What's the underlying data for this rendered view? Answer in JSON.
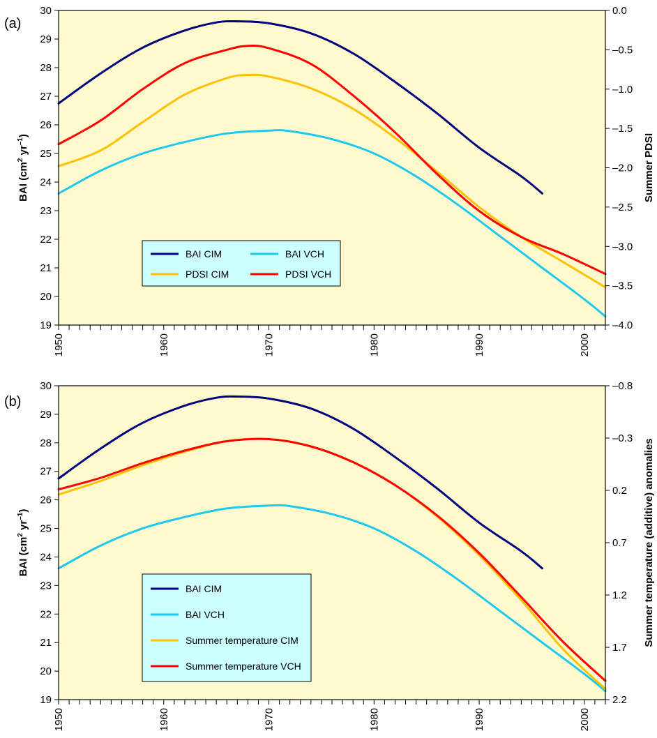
{
  "chart_data": [
    {
      "type": "line",
      "panel_label": "(a)",
      "ylabel": "BAI (cm² yr⁻¹)",
      "ylabel_parts": [
        "BAI (cm",
        "2",
        " yr",
        "–1",
        ")"
      ],
      "y2label": "Summer PDSI",
      "xlim": [
        1950,
        2002
      ],
      "ylim": [
        19,
        30
      ],
      "y2lim": [
        -4.0,
        0.0
      ],
      "x_ticks": [
        "1950",
        "1960",
        "1970",
        "1980",
        "1990",
        "2000"
      ],
      "y_ticks": [
        "19",
        "20",
        "21",
        "22",
        "23",
        "24",
        "25",
        "26",
        "27",
        "28",
        "29",
        "30"
      ],
      "y2_ticks": [
        "–4.0",
        "–3.5",
        "–3.0",
        "–2.5",
        "–2.0",
        "–1.5",
        "–1.0",
        "–0.5",
        "0.0"
      ],
      "grid": false,
      "background": "#FFFACD",
      "legend_placement": "lower-left",
      "legend_columns": 2,
      "series": [
        {
          "name": "BAI CIM",
          "axis": "left",
          "color": "#000080",
          "x": [
            1950,
            1954,
            1958,
            1962,
            1965,
            1967,
            1970,
            1974,
            1978,
            1982,
            1986,
            1990,
            1994,
            1996
          ],
          "y": [
            26.75,
            27.8,
            28.7,
            29.3,
            29.58,
            29.62,
            29.55,
            29.2,
            28.5,
            27.5,
            26.4,
            25.2,
            24.2,
            23.6
          ]
        },
        {
          "name": "BAI VCH",
          "axis": "left",
          "color": "#1EC8F0",
          "x": [
            1950,
            1954,
            1958,
            1962,
            1966,
            1970,
            1972,
            1976,
            1980,
            1984,
            1988,
            1992,
            1996,
            2000,
            2002
          ],
          "y": [
            23.6,
            24.4,
            25.0,
            25.4,
            25.7,
            25.8,
            25.78,
            25.5,
            25.0,
            24.2,
            23.2,
            22.1,
            21.0,
            19.9,
            19.3
          ]
        },
        {
          "name": "PDSI CIM",
          "axis": "right",
          "color": "#FFC000",
          "x": [
            1950,
            1954,
            1958,
            1962,
            1966,
            1968,
            1970,
            1974,
            1978,
            1982,
            1986,
            1990,
            1994,
            1998,
            2002
          ],
          "y": [
            -1.98,
            -1.78,
            -1.42,
            -1.07,
            -0.86,
            -0.82,
            -0.84,
            -0.99,
            -1.25,
            -1.62,
            -2.05,
            -2.5,
            -2.88,
            -3.2,
            -3.52
          ]
        },
        {
          "name": "PDSI VCH",
          "axis": "right",
          "color": "#FF0000",
          "x": [
            1950,
            1954,
            1958,
            1962,
            1966,
            1968,
            1970,
            1974,
            1978,
            1982,
            1986,
            1990,
            1994,
            1998,
            2002
          ],
          "y": [
            -1.7,
            -1.4,
            -1.0,
            -0.67,
            -0.5,
            -0.45,
            -0.48,
            -0.68,
            -1.08,
            -1.55,
            -2.08,
            -2.55,
            -2.88,
            -3.1,
            -3.35
          ]
        }
      ]
    },
    {
      "type": "line",
      "panel_label": "(b)",
      "ylabel": "BAI (cm² yr⁻¹)",
      "ylabel_parts": [
        "BAI (cm",
        "2",
        " yr",
        "–1",
        ")"
      ],
      "y2label": "Summer temperature (additive) anomalies",
      "xlim": [
        1950,
        2002
      ],
      "ylim": [
        19,
        30
      ],
      "y2lim": [
        2.2,
        -0.8
      ],
      "y2_inverted": true,
      "x_ticks": [
        "1950",
        "1960",
        "1970",
        "1980",
        "1990",
        "2000"
      ],
      "y_ticks": [
        "19",
        "20",
        "21",
        "22",
        "23",
        "24",
        "25",
        "26",
        "27",
        "28",
        "29",
        "30"
      ],
      "y2_ticks": [
        "2.2",
        "1.7",
        "1.2",
        "0.7",
        "0.2",
        "–0.3",
        "–0.8"
      ],
      "y2_tick_values": [
        2.2,
        1.7,
        1.2,
        0.7,
        0.2,
        -0.3,
        -0.8
      ],
      "grid": false,
      "background": "#FFFACD",
      "legend_placement": "lower-left",
      "legend_columns": 1,
      "series": [
        {
          "name": "BAI CIM",
          "axis": "left",
          "color": "#000080",
          "x": [
            1950,
            1954,
            1958,
            1962,
            1965,
            1967,
            1970,
            1974,
            1978,
            1982,
            1986,
            1990,
            1994,
            1996
          ],
          "y": [
            26.75,
            27.8,
            28.7,
            29.3,
            29.58,
            29.62,
            29.55,
            29.2,
            28.5,
            27.5,
            26.4,
            25.2,
            24.2,
            23.6
          ]
        },
        {
          "name": "BAI VCH",
          "axis": "left",
          "color": "#1EC8F0",
          "x": [
            1950,
            1954,
            1958,
            1962,
            1966,
            1970,
            1972,
            1976,
            1980,
            1984,
            1988,
            1992,
            1996,
            2000,
            2002
          ],
          "y": [
            23.6,
            24.4,
            25.0,
            25.4,
            25.7,
            25.8,
            25.78,
            25.5,
            25.0,
            24.2,
            23.2,
            22.1,
            21.0,
            19.9,
            19.3
          ]
        },
        {
          "name": "Summer temperature CIM",
          "axis": "right",
          "color": "#FFC000",
          "x": [
            1950,
            1954,
            1958,
            1962,
            1966,
            1970,
            1974,
            1978,
            1982,
            1986,
            1990,
            1994,
            1998,
            2002
          ],
          "y": [
            0.24,
            0.11,
            -0.04,
            -0.17,
            -0.27,
            -0.29,
            -0.22,
            -0.07,
            0.15,
            0.45,
            0.82,
            1.25,
            1.72,
            2.1
          ]
        },
        {
          "name": "Summer temperature VCH",
          "axis": "right",
          "color": "#FF0000",
          "x": [
            1950,
            1954,
            1958,
            1962,
            1966,
            1970,
            1974,
            1978,
            1982,
            1986,
            1990,
            1994,
            1998,
            2002
          ],
          "y": [
            0.19,
            0.08,
            -0.06,
            -0.18,
            -0.27,
            -0.29,
            -0.22,
            -0.07,
            0.15,
            0.44,
            0.8,
            1.22,
            1.65,
            2.02
          ]
        }
      ]
    }
  ]
}
